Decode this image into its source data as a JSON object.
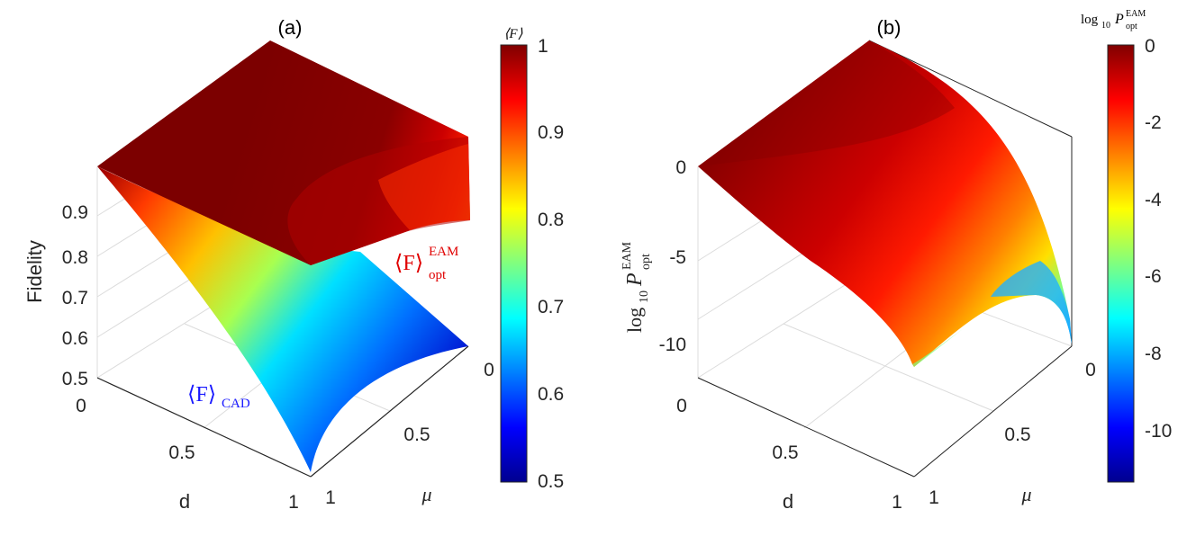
{
  "panels": {
    "a": {
      "title": "(a)",
      "zlabel": "Fidelity",
      "xlabel": "d",
      "ylabel": "μ",
      "z_ticks": [
        "0.5",
        "0.6",
        "0.7",
        "0.8",
        "0.9"
      ],
      "x_ticks": [
        "0",
        "0.5",
        "1"
      ],
      "y_ticks": [
        "1",
        "0.5",
        "0"
      ],
      "annotation_eam": "⟨F⟩",
      "annotation_eam_sup": "EAM",
      "annotation_eam_sub": "opt",
      "annotation_cad": "⟨F⟩",
      "annotation_cad_sub": "CAD",
      "colorbar_title": "⟨F⟩",
      "colorbar_ticks": [
        "1",
        "0.9",
        "0.8",
        "0.7",
        "0.6",
        "0.5"
      ]
    },
    "b": {
      "title": "(b)",
      "zlabel": "log",
      "zlabel_sub": "10",
      "zlabel_var": "P",
      "zlabel_sup": "EAM",
      "zlabel_sub2": "opt",
      "xlabel": "d",
      "ylabel": "μ",
      "z_ticks": [
        "0",
        "-5",
        "-10"
      ],
      "x_ticks": [
        "0",
        "0.5",
        "1"
      ],
      "y_ticks": [
        "1",
        "0.5",
        "0"
      ],
      "colorbar_title": "log",
      "colorbar_title_sub": "10",
      "colorbar_title_var": "P",
      "colorbar_title_sup": "EAM",
      "colorbar_title_sub2": "opt",
      "colorbar_ticks": [
        "0",
        "-2",
        "-4",
        "-6",
        "-8",
        "-10"
      ]
    }
  },
  "chart_data": [
    {
      "type": "surface",
      "title": "(a)",
      "xlabel": "d",
      "ylabel": "μ",
      "zlabel": "Fidelity",
      "xlim": [
        0,
        1
      ],
      "ylim": [
        0,
        1
      ],
      "zlim": [
        0.5,
        1
      ],
      "colormap": "jet",
      "clim": [
        0.5,
        1
      ],
      "series": [
        {
          "name": "⟨F⟩opt EAM",
          "corners": {
            "d0_mu0": 1.0,
            "d0_mu1": 1.0,
            "d1_mu0": 0.92,
            "d1_mu1": 1.0
          }
        },
        {
          "name": "⟨F⟩CAD",
          "corners": {
            "d0_mu0": 1.0,
            "d0_mu1": 1.0,
            "d1_mu0": 0.5,
            "d1_mu1": 0.5
          }
        }
      ]
    },
    {
      "type": "surface",
      "title": "(b)",
      "xlabel": "d",
      "ylabel": "μ",
      "zlim": [
        -12,
        0
      ],
      "colormap": "jet",
      "clim": [
        -11.3,
        0
      ],
      "series": [
        {
          "corners": {
            "d0_mu0": 0,
            "d0_mu1": 0,
            "d1_mu0": -11.3,
            "d1_mu1": -6.5
          }
        }
      ]
    }
  ]
}
